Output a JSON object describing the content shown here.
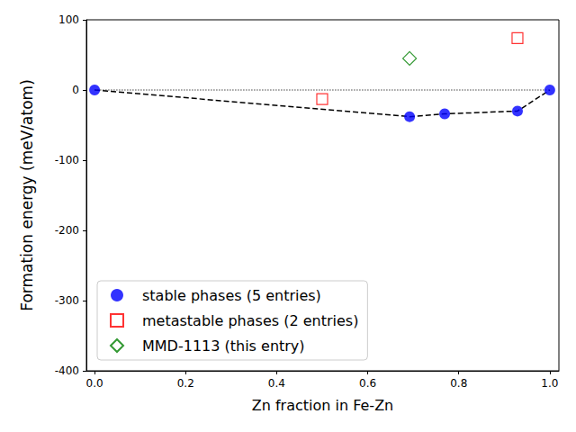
{
  "chart_data": {
    "type": "scatter",
    "xlabel": "Zn fraction in Fe-Zn",
    "ylabel": "Formation energy (meV/atom)",
    "xlim": [
      -0.018,
      1.02
    ],
    "xticks": [
      {
        "value": 0,
        "label": "0.0"
      },
      0.2,
      0.4,
      0.6,
      0.8,
      {
        "value": 1,
        "label": "1.0"
      }
    ],
    "ylim": [
      -400,
      100
    ],
    "yticks": [
      -400,
      -300,
      -200,
      -100,
      0,
      100
    ],
    "grid": false,
    "legend": "lower left",
    "series": [
      {
        "type": "line",
        "color": "#808080",
        "line_style": "dotted",
        "x": [
          0,
          1
        ],
        "values": [
          0,
          0
        ]
      },
      {
        "type": "line",
        "color": "#000000",
        "line_style": "dashed",
        "x": [
          0,
          0.692,
          0.769,
          0.929,
          1
        ],
        "values": [
          0,
          -38,
          -34,
          -30,
          0
        ]
      },
      {
        "type": "scatter",
        "name": "stable phases (5 entries)",
        "color": "#0000ff",
        "marker": "circle",
        "x": [
          0,
          0.692,
          0.769,
          0.929,
          1
        ],
        "values": [
          0,
          -38,
          -34,
          -30,
          0
        ]
      },
      {
        "type": "scatter",
        "name": "metastable phases (2 entries)",
        "color": "#ff0000",
        "marker": "square-open",
        "x": [
          0.5,
          0.929
        ],
        "values": [
          -13,
          74
        ]
      },
      {
        "type": "scatter",
        "name": "MMD-1113 (this entry)",
        "color": "#008000",
        "marker": "diamond-open",
        "x": [
          0.692
        ],
        "values": [
          45
        ]
      }
    ]
  }
}
